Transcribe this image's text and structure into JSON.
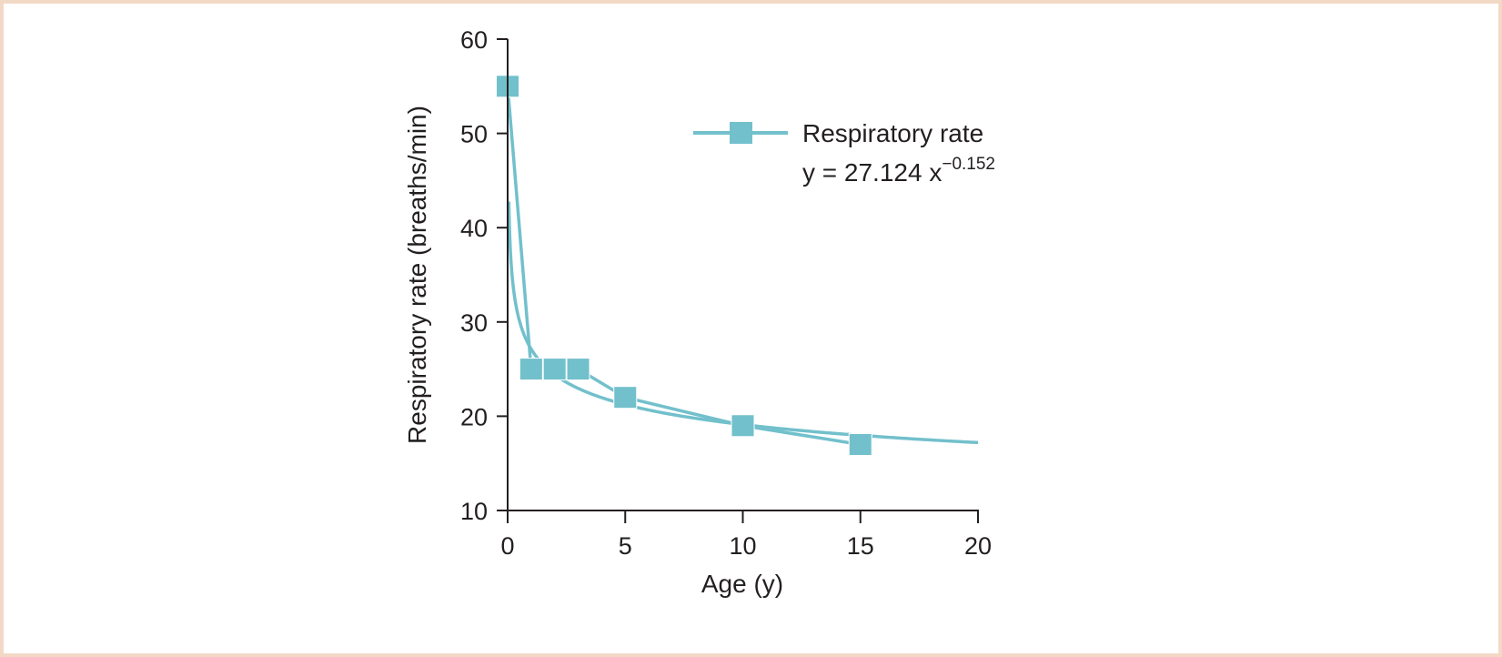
{
  "chart_data": {
    "type": "line",
    "title": "",
    "xlabel": "Age (y)",
    "ylabel": "Respiratory rate (breaths/min)",
    "xlim": [
      0,
      20
    ],
    "ylim": [
      10,
      60
    ],
    "xticks": [
      0,
      5,
      10,
      15,
      20
    ],
    "yticks": [
      10,
      20,
      30,
      40,
      50,
      60
    ],
    "grid": false,
    "legend_position": "top-right",
    "series": [
      {
        "name": "Respiratory rate",
        "marker": "square",
        "color": "#72c0cc",
        "x": [
          0,
          1,
          2,
          3,
          5,
          10,
          15
        ],
        "y": [
          55,
          25,
          25,
          25,
          22,
          19,
          17
        ]
      }
    ],
    "trendline": {
      "type": "power",
      "coefficient": 27.124,
      "exponent": -0.152,
      "equation_prefix": "y = 27.124 x",
      "equation_exponent": "−0.152",
      "x_range": [
        0.05,
        20
      ],
      "color": "#72c0cc"
    }
  },
  "colors": {
    "frame_border": "#f2d9c6",
    "axis": "#231f20",
    "series": "#72c0cc"
  }
}
